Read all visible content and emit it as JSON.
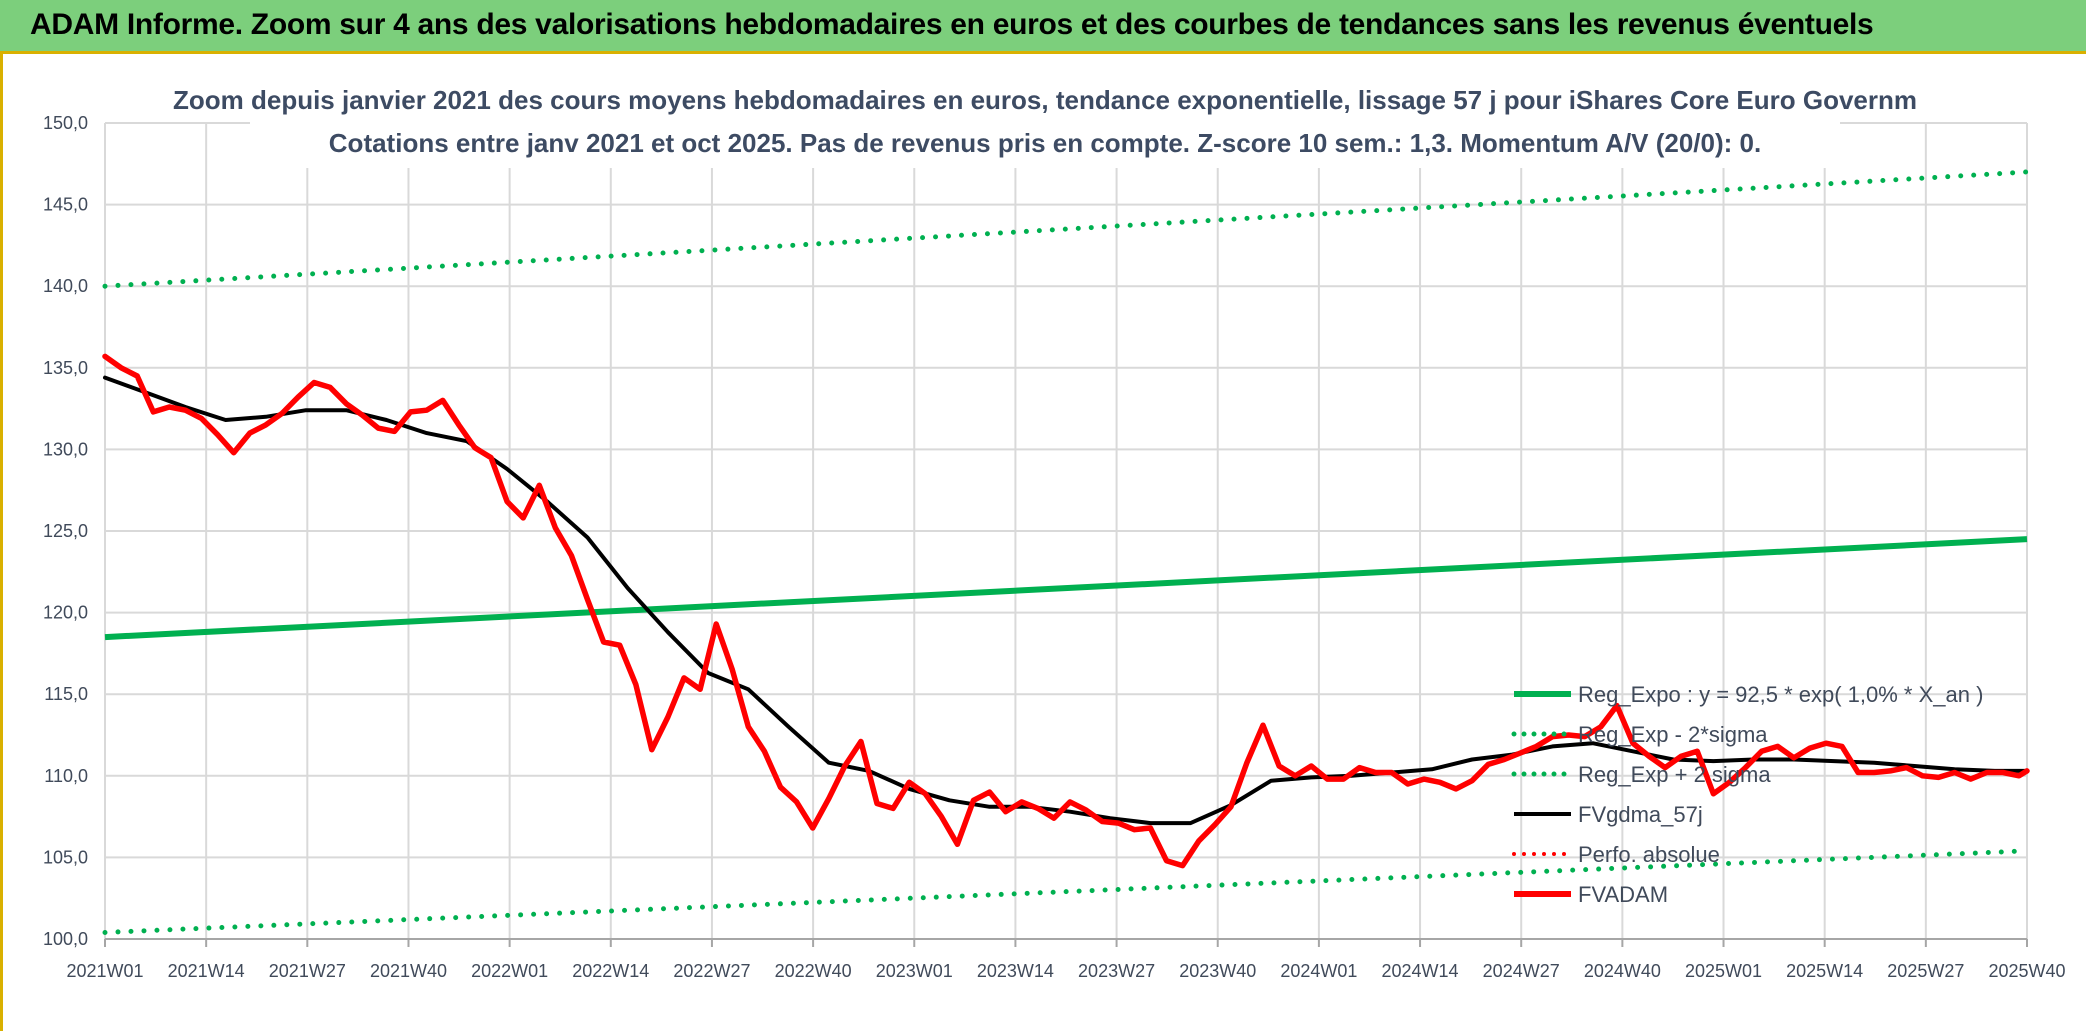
{
  "header": {
    "title": "ADAM Informe. Zoom sur 4 ans des valorisations hebdomadaires en euros et des courbes de tendances sans les revenus éventuels"
  },
  "chart_data": {
    "type": "line",
    "title": "Zoom depuis janvier 2021 des cours moyens hebdomadaires en euros, tendance exponentielle, lissage 57 j pour iShares Core Euro Governm",
    "subtitle": "Cotations entre janv 2021 et oct 2025. Pas de revenus pris en compte. Z-score 10 sem.: 1,3. Momentum A/V (20/0): 0.",
    "ylim": [
      100,
      150
    ],
    "y_ticks": [
      "100,0",
      "105,0",
      "110,0",
      "115,0",
      "120,0",
      "125,0",
      "130,0",
      "135,0",
      "140,0",
      "145,0",
      "150,0"
    ],
    "x_tick_labels": [
      "2021W01",
      "2021W14",
      "2021W27",
      "2021W40",
      "2022W01",
      "2022W14",
      "2022W27",
      "2022W40",
      "2023W01",
      "2023W14",
      "2023W27",
      "2023W40",
      "2024W01",
      "2024W14",
      "2024W27",
      "2024W40",
      "2025W01",
      "2025W14",
      "2025W27",
      "2025W40"
    ],
    "grid": true,
    "legend_position": "bottom-right",
    "legend": [
      "Reg_Expo : y = 92,5 * exp( 1,0% *  X_an )",
      "Reg_Exp - 2*sigma",
      "Reg_Exp + 2 sigma",
      "FVgdma_57j",
      "Perfo. absolue",
      "FVADAM"
    ],
    "colors": {
      "reg_expo": "#00b050",
      "sigma": "#00b050",
      "fvgdma": "#000000",
      "perfo": "#ff0000",
      "fvadam": "#ff0000"
    },
    "series": [
      {
        "name": "Reg_Expo",
        "start": 118.5,
        "end": 124.5
      },
      {
        "name": "Reg_Exp - 2*sigma",
        "start": 100.4,
        "end": 105.4
      },
      {
        "name": "Reg_Exp + 2 sigma",
        "start": 140.0,
        "end": 147.0
      },
      {
        "name": "FVgdma_57j",
        "week_index": [
          0,
          5,
          10,
          15,
          20,
          25,
          30,
          35,
          40,
          45,
          50,
          55,
          60,
          65,
          70,
          75,
          80,
          85,
          90,
          95,
          100,
          105,
          110,
          115,
          120,
          125,
          130,
          135,
          140,
          145,
          150,
          155,
          160,
          165,
          170,
          175,
          180,
          185,
          190,
          195,
          200,
          205,
          210,
          215,
          220,
          225,
          230,
          235,
          239
        ],
        "values": [
          134.4,
          133.5,
          132.6,
          131.8,
          132.0,
          132.4,
          132.4,
          131.8,
          131.0,
          130.5,
          128.8,
          126.8,
          124.6,
          121.5,
          118.8,
          116.3,
          115.3,
          113.0,
          110.8,
          110.3,
          109.2,
          108.5,
          108.1,
          108.1,
          107.8,
          107.4,
          107.1,
          107.1,
          108.2,
          109.7,
          109.9,
          110.0,
          110.2,
          110.4,
          111.0,
          111.3,
          111.8,
          112.0,
          111.5,
          111.0,
          110.9,
          111.0,
          111.0,
          110.9,
          110.8,
          110.6,
          110.4,
          110.3,
          110.3
        ]
      },
      {
        "name": "FVADAM",
        "week_index": [
          0,
          2,
          4,
          6,
          8,
          10,
          12,
          14,
          16,
          18,
          20,
          22,
          24,
          26,
          28,
          30,
          32,
          34,
          36,
          38,
          40,
          42,
          44,
          46,
          48,
          50,
          52,
          54,
          56,
          58,
          60,
          62,
          64,
          66,
          68,
          70,
          72,
          74,
          76,
          78,
          80,
          82,
          84,
          86,
          88,
          90,
          92,
          94,
          96,
          98,
          100,
          102,
          104,
          106,
          108,
          110,
          112,
          114,
          116,
          118,
          120,
          122,
          124,
          126,
          128,
          130,
          132,
          134,
          136,
          138,
          140,
          142,
          144,
          146,
          148,
          150,
          152,
          154,
          156,
          158,
          160,
          162,
          164,
          166,
          168,
          170,
          172,
          174,
          176,
          178,
          180,
          182,
          184,
          186,
          188,
          190,
          192,
          194,
          196,
          198,
          200,
          202,
          204,
          206,
          208,
          210,
          212,
          214,
          216,
          218,
          220,
          222,
          224,
          226,
          228,
          230,
          232,
          234,
          236,
          238,
          239
        ],
        "values": [
          135.7,
          135.0,
          134.5,
          132.3,
          132.6,
          132.4,
          131.9,
          130.9,
          129.8,
          131.0,
          131.5,
          132.2,
          133.2,
          134.1,
          133.8,
          132.8,
          132.1,
          131.3,
          131.1,
          132.3,
          132.4,
          133.0,
          131.5,
          130.1,
          129.5,
          126.8,
          125.8,
          127.8,
          125.2,
          123.5,
          120.8,
          118.2,
          118.0,
          115.6,
          111.6,
          113.6,
          116.0,
          115.3,
          119.3,
          116.5,
          113.0,
          111.5,
          109.3,
          108.4,
          106.8,
          108.6,
          110.6,
          112.1,
          108.3,
          108.0,
          109.6,
          108.9,
          107.5,
          105.8,
          108.5,
          109.0,
          107.8,
          108.4,
          108.0,
          107.4,
          108.4,
          107.9,
          107.2,
          107.1,
          106.7,
          106.8,
          104.8,
          104.5,
          106.0,
          107.0,
          108.1,
          110.8,
          113.1,
          110.6,
          110.0,
          110.6,
          109.8,
          109.8,
          110.5,
          110.2,
          110.2,
          109.5,
          109.8,
          109.6,
          109.2,
          109.7,
          110.7,
          111.0,
          111.4,
          111.8,
          112.4,
          112.5,
          112.4,
          113.0,
          114.3,
          112.0,
          111.2,
          110.5,
          111.2,
          111.5,
          108.9,
          109.6,
          110.5,
          111.5,
          111.8,
          111.1,
          111.7,
          112.0,
          111.8,
          110.2,
          110.2,
          110.3,
          110.5,
          110.0,
          109.9,
          110.2,
          109.8,
          110.2,
          110.2,
          110.0,
          110.3
        ]
      }
    ]
  }
}
